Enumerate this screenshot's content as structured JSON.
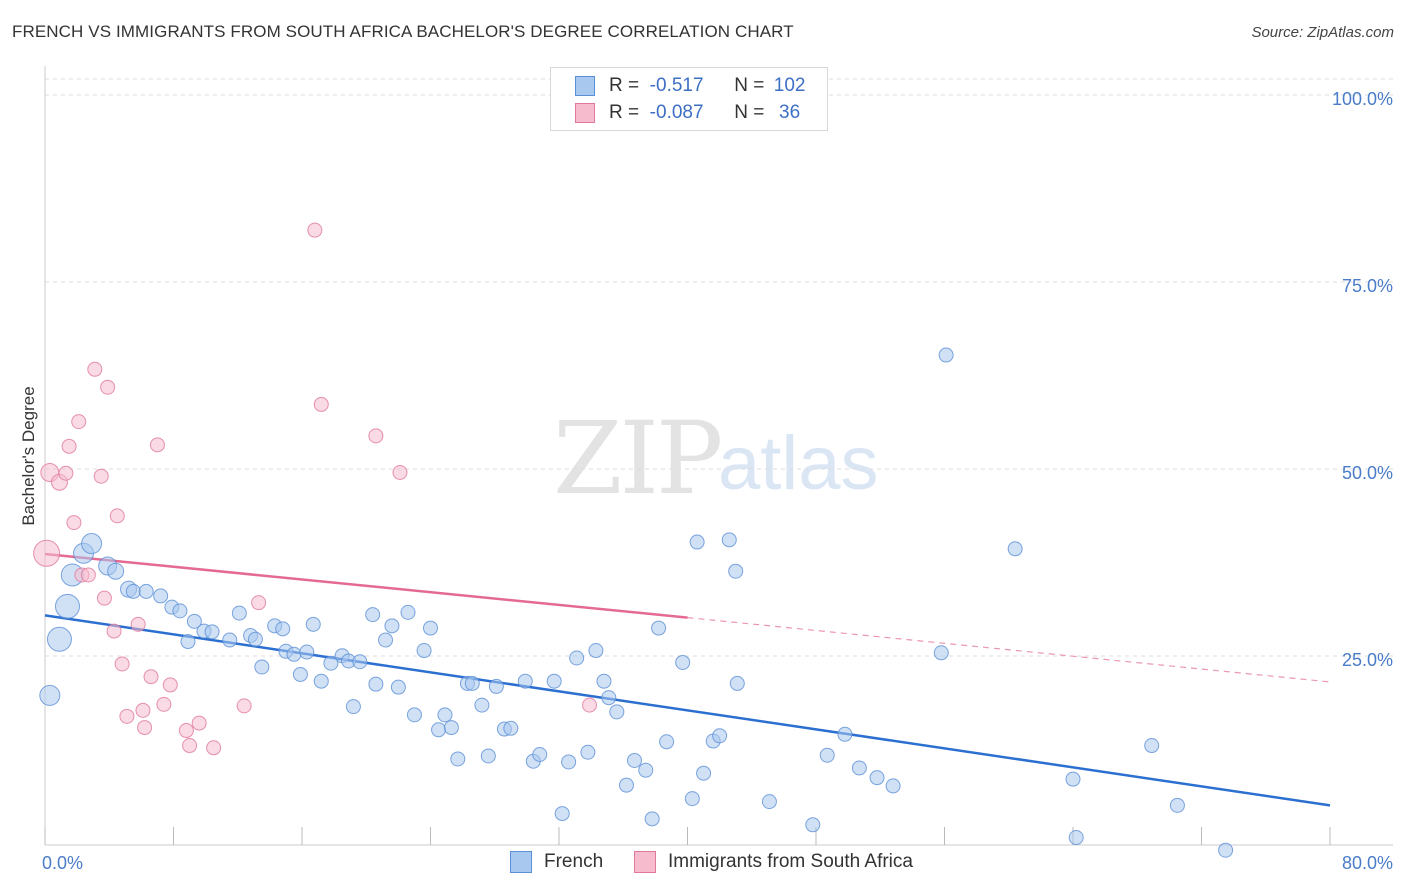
{
  "title": "FRENCH VS IMMIGRANTS FROM SOUTH AFRICA BACHELOR'S DEGREE CORRELATION CHART",
  "source": "Source: ZipAtlas.com",
  "watermark": {
    "a": "ZIP",
    "b": "atlas"
  },
  "legend": {
    "rows": [
      {
        "r_label": "R =",
        "r_value": "-0.517",
        "n_label": "N =",
        "n_value": "102",
        "color": "#a9c8ef",
        "border": "#5b8fd6"
      },
      {
        "r_label": "R =",
        "r_value": "-0.087",
        "n_label": "N =",
        "n_value": "36",
        "color": "#f6bccd",
        "border": "#e0789a"
      }
    ]
  },
  "bottom_legend": [
    {
      "label": "French",
      "color": "#a9c8ef",
      "border": "#5b8fd6"
    },
    {
      "label": "Immigrants from South Africa",
      "color": "#f6bccd",
      "border": "#e0789a"
    }
  ],
  "chart_data": {
    "type": "scatter",
    "title": "FRENCH VS IMMIGRANTS FROM SOUTH AFRICA BACHELOR'S DEGREE CORRELATION CHART",
    "xlabel": "",
    "ylabel": "Bachelor's Degree",
    "xlim": [
      0,
      80
    ],
    "ylim": [
      0,
      100
    ],
    "x_tick_labels": [
      "0.0%",
      "80.0%"
    ],
    "y_tick_labels": [
      "25.0%",
      "50.0%",
      "75.0%",
      "100.0%"
    ],
    "y_ticks": [
      25,
      50,
      75,
      100
    ],
    "grid": true,
    "legend_position": "top-center",
    "series": [
      {
        "name": "French",
        "color": "#5b8fd6",
        "fill": "#a9c8ef",
        "trend": {
          "x": [
            0,
            80
          ],
          "y": [
            30.7,
            5.3
          ],
          "color": "#2b6fd0"
        },
        "points": [
          [
            0.3,
            20.0,
            20
          ],
          [
            0.9,
            27.5,
            24
          ],
          [
            1.4,
            31.9,
            24
          ],
          [
            1.7,
            36.1,
            22
          ],
          [
            2.4,
            39.0,
            20
          ],
          [
            2.9,
            40.3,
            20
          ],
          [
            3.9,
            37.3,
            18
          ],
          [
            4.4,
            36.6,
            16
          ],
          [
            5.2,
            34.2,
            16
          ],
          [
            5.5,
            33.9,
            14
          ],
          [
            6.3,
            33.9,
            14
          ],
          [
            7.2,
            33.3,
            14
          ],
          [
            7.9,
            31.8,
            14
          ],
          [
            8.4,
            31.3,
            14
          ],
          [
            9.3,
            29.9,
            14
          ],
          [
            8.9,
            27.2,
            14
          ],
          [
            9.9,
            28.6,
            14
          ],
          [
            10.4,
            28.5,
            14
          ],
          [
            11.5,
            27.4,
            14
          ],
          [
            12.1,
            31.0,
            14
          ],
          [
            12.8,
            28.0,
            14
          ],
          [
            13.1,
            27.5,
            14
          ],
          [
            13.5,
            23.8,
            14
          ],
          [
            14.3,
            29.3,
            14
          ],
          [
            14.8,
            28.9,
            14
          ],
          [
            15.0,
            25.9,
            14
          ],
          [
            15.5,
            25.5,
            14
          ],
          [
            15.9,
            22.8,
            14
          ],
          [
            16.3,
            25.8,
            14
          ],
          [
            16.7,
            29.5,
            14
          ],
          [
            17.2,
            21.9,
            14
          ],
          [
            17.8,
            24.3,
            14
          ],
          [
            18.5,
            25.3,
            14
          ],
          [
            18.9,
            24.6,
            14
          ],
          [
            19.2,
            18.5,
            14
          ],
          [
            19.6,
            24.5,
            14
          ],
          [
            20.4,
            30.8,
            14
          ],
          [
            20.6,
            21.5,
            14
          ],
          [
            21.2,
            27.4,
            14
          ],
          [
            21.6,
            29.3,
            14
          ],
          [
            22.0,
            21.1,
            14
          ],
          [
            22.6,
            31.1,
            14
          ],
          [
            23.0,
            17.4,
            14
          ],
          [
            23.6,
            26.0,
            14
          ],
          [
            24.0,
            29.0,
            14
          ],
          [
            24.5,
            15.4,
            14
          ],
          [
            24.9,
            17.4,
            14
          ],
          [
            25.3,
            15.7,
            14
          ],
          [
            25.7,
            11.5,
            14
          ],
          [
            26.3,
            21.6,
            14
          ],
          [
            26.6,
            21.6,
            14
          ],
          [
            27.2,
            18.7,
            14
          ],
          [
            27.6,
            11.9,
            14
          ],
          [
            28.1,
            21.2,
            14
          ],
          [
            28.6,
            15.5,
            14
          ],
          [
            29.0,
            15.6,
            14
          ],
          [
            29.9,
            21.9,
            14
          ],
          [
            30.4,
            11.2,
            14
          ],
          [
            30.8,
            12.1,
            14
          ],
          [
            31.7,
            21.9,
            14
          ],
          [
            32.2,
            4.2,
            14
          ],
          [
            32.6,
            11.1,
            14
          ],
          [
            33.1,
            25.0,
            14
          ],
          [
            33.8,
            12.4,
            14
          ],
          [
            34.3,
            26.0,
            14
          ],
          [
            34.8,
            21.9,
            14
          ],
          [
            35.1,
            19.7,
            14
          ],
          [
            35.6,
            17.8,
            14
          ],
          [
            36.2,
            8.0,
            14
          ],
          [
            36.7,
            11.3,
            14
          ],
          [
            37.4,
            10.0,
            14
          ],
          [
            37.8,
            3.5,
            14
          ],
          [
            38.2,
            29.0,
            14
          ],
          [
            38.7,
            13.8,
            14
          ],
          [
            39.7,
            24.4,
            14
          ],
          [
            40.3,
            6.2,
            14
          ],
          [
            40.6,
            40.5,
            14
          ],
          [
            41.0,
            9.6,
            14
          ],
          [
            41.6,
            13.9,
            14
          ],
          [
            42.0,
            14.6,
            14
          ],
          [
            42.6,
            40.8,
            14
          ],
          [
            43.0,
            36.6,
            14
          ],
          [
            43.1,
            21.6,
            14
          ],
          [
            45.1,
            5.8,
            14
          ],
          [
            47.8,
            2.7,
            14
          ],
          [
            48.7,
            12.0,
            14
          ],
          [
            49.8,
            14.8,
            14
          ],
          [
            50.7,
            10.3,
            14
          ],
          [
            51.8,
            9.0,
            14
          ],
          [
            52.8,
            7.9,
            14
          ],
          [
            55.8,
            25.7,
            14
          ],
          [
            56.1,
            65.5,
            14
          ],
          [
            60.4,
            39.6,
            14
          ],
          [
            64.0,
            8.8,
            14
          ],
          [
            64.2,
            1.0,
            14
          ],
          [
            68.9,
            13.3,
            14
          ],
          [
            70.5,
            5.3,
            14
          ],
          [
            73.5,
            -0.7,
            14
          ]
        ]
      },
      {
        "name": "Immigrants from South Africa",
        "color": "#e0789a",
        "fill": "#f6bccd",
        "trend": {
          "x": [
            0,
            40
          ],
          "y": [
            38.9,
            30.4
          ],
          "dash_to": [
            80,
            21.8
          ],
          "color": "#e46a94"
        },
        "points": [
          [
            0.1,
            39.0,
            26
          ],
          [
            0.3,
            49.8,
            18
          ],
          [
            0.9,
            48.5,
            16
          ],
          [
            1.3,
            49.7,
            14
          ],
          [
            1.5,
            53.3,
            14
          ],
          [
            1.8,
            43.1,
            14
          ],
          [
            2.1,
            56.6,
            14
          ],
          [
            2.3,
            36.1,
            14
          ],
          [
            2.7,
            36.1,
            14
          ],
          [
            3.1,
            63.6,
            14
          ],
          [
            3.5,
            49.3,
            14
          ],
          [
            3.7,
            33.0,
            14
          ],
          [
            3.9,
            61.2,
            14
          ],
          [
            4.5,
            44.0,
            14
          ],
          [
            4.3,
            28.6,
            14
          ],
          [
            4.8,
            24.2,
            14
          ],
          [
            5.1,
            17.2,
            14
          ],
          [
            5.8,
            29.5,
            14
          ],
          [
            6.1,
            18.0,
            14
          ],
          [
            6.2,
            15.7,
            14
          ],
          [
            6.6,
            22.5,
            14
          ],
          [
            7.0,
            53.5,
            14
          ],
          [
            7.4,
            18.8,
            14
          ],
          [
            7.8,
            21.4,
            14
          ],
          [
            8.8,
            15.3,
            14
          ],
          [
            9.0,
            13.3,
            14
          ],
          [
            9.6,
            16.3,
            14
          ],
          [
            10.5,
            13.0,
            14
          ],
          [
            12.4,
            18.6,
            14
          ],
          [
            13.3,
            32.4,
            14
          ],
          [
            16.8,
            82.2,
            14
          ],
          [
            17.2,
            58.9,
            14
          ],
          [
            20.6,
            54.7,
            14
          ],
          [
            22.1,
            49.8,
            14
          ],
          [
            33.9,
            18.7,
            14
          ]
        ]
      }
    ]
  }
}
